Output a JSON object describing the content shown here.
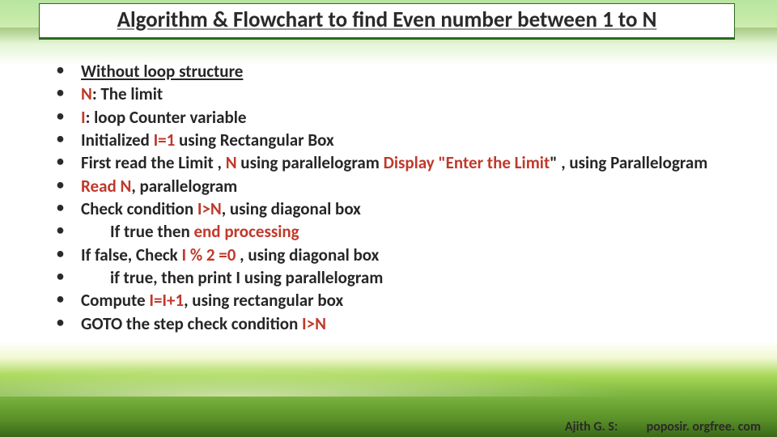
{
  "title": "Algorithm & Flowchart to find Even number between 1 to N",
  "bullets": {
    "b0_without_loop": "Without loop structure",
    "b1_n": "N",
    "b1_rest": ": The limit",
    "b2_i": "I",
    "b2_rest": ": loop Counter variable",
    "b3_pre": "Initialized ",
    "b3_red": "I=1",
    "b3_post": " using Rectangular Box",
    "b4_pre": "First read the Limit , ",
    "b4_n": "N",
    "b4_mid": " using parallelogram ",
    "b4_disp": "Display \"Enter the Limit",
    "b4_post": "\" , using Parallelogram",
    "b5_read": "Read N",
    "b5_post": ", parallelogram",
    "b6_pre": "Check condition ",
    "b6_red": "I>N",
    "b6_post": ", using diagonal box",
    "b7_pre": "If true  then ",
    "b7_red": "end processing",
    "b8_pre": "If false, Check ",
    "b8_red": "I % 2 =0 ",
    "b8_post": ", using diagonal box",
    "b9": "if true, then print I using parallelogram",
    "b10_pre": "Compute ",
    "b10_red": "I=I+1",
    "b10_post": ", using rectangular box",
    "b11_pre": "GOTO the step check condition ",
    "b11_red": "I>N"
  },
  "footer": {
    "author": "Ajith G. S:",
    "site": "poposir. orgfree. com"
  },
  "colors": {
    "red": "#c0392b",
    "border": "#2a6a1e",
    "text": "#262626"
  }
}
